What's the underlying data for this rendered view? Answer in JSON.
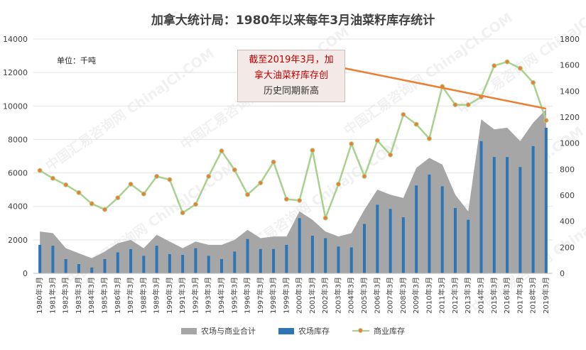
{
  "title": "加拿大统计局：1980年以来每年3月油菜籽库存统计",
  "unit_label": "单位：千吨",
  "callout": {
    "lines": [
      "截至2019年3月，加",
      "拿大油菜籽库存创",
      "历史同期新高"
    ]
  },
  "watermark": "中国汇易咨询网 ChinaJCI.COM",
  "colors": {
    "area": "#a6a6a6",
    "bar": "#2e75b6",
    "line": "#a9d18e",
    "marker": "#ed7d31",
    "trend": "#ed7d31"
  },
  "legend": [
    {
      "key": "area",
      "label": "农场与商业合计"
    },
    {
      "key": "bar",
      "label": "农场库存"
    },
    {
      "key": "line",
      "label": "商业库存"
    }
  ],
  "chart_data": {
    "type": "combo",
    "categories": [
      "1980年3月",
      "1981年3月",
      "1982年3月",
      "1983年3月",
      "1984年3月",
      "1985年3月",
      "1986年3月",
      "1987年3月",
      "1988年3月",
      "1989年3月",
      "1990年3月",
      "1991年3月",
      "1992年3月",
      "1993年3月",
      "1994年3月",
      "1995年3月",
      "1996年3月",
      "1997年3月",
      "1998年3月",
      "1999年3月",
      "2000年3月",
      "2001年3月",
      "2002年3月",
      "2003年3月",
      "2004年3月",
      "2005年3月",
      "2006年3月",
      "2007年3月",
      "2008年3月",
      "2009年3月",
      "2010年3月",
      "2011年3月",
      "2012年3月",
      "2013年3月",
      "2014年3月",
      "2015年3月",
      "2016年3月",
      "2017年3月",
      "2018年3月",
      "2019年3月"
    ],
    "left_axis": {
      "min": 0,
      "max": 14000,
      "ticks": [
        "0",
        "2000",
        "4000",
        "6000",
        "8000",
        "10000",
        "12000",
        "14000"
      ]
    },
    "right_axis": {
      "min": 0,
      "max": 1800,
      "ticks": [
        "0",
        "200",
        "400",
        "600",
        "800",
        "1000",
        "1200",
        "1400",
        "1600",
        "1800"
      ]
    },
    "series": [
      {
        "name": "农场与商业合计",
        "type": "area",
        "axis": "left",
        "values": [
          2500,
          2400,
          1500,
          1200,
          900,
          1300,
          1800,
          2000,
          1500,
          2300,
          1900,
          1500,
          1900,
          1700,
          1700,
          2000,
          2600,
          2100,
          2200,
          2200,
          3700,
          3200,
          2500,
          2200,
          2400,
          3800,
          5000,
          4700,
          4500,
          6300,
          6900,
          6500,
          4700,
          3700,
          9200,
          8600,
          8700,
          7900,
          9000,
          9800
        ]
      },
      {
        "name": "农场库存",
        "type": "bar",
        "axis": "left",
        "values": [
          1700,
          1650,
          850,
          550,
          350,
          850,
          1250,
          1450,
          1050,
          1650,
          1150,
          1100,
          1500,
          1050,
          850,
          1300,
          2050,
          1450,
          1450,
          1700,
          3300,
          2250,
          2100,
          1600,
          1550,
          2950,
          4100,
          3850,
          3350,
          5250,
          5900,
          5200,
          3900,
          3200,
          7900,
          6950,
          6950,
          6350,
          7600,
          8700
        ]
      },
      {
        "name": "商业库存",
        "type": "line",
        "axis": "right",
        "values": [
          790,
          730,
          680,
          620,
          535,
          490,
          580,
          685,
          610,
          745,
          720,
          465,
          530,
          745,
          940,
          795,
          605,
          695,
          855,
          570,
          560,
          945,
          425,
          685,
          995,
          745,
          1020,
          910,
          1220,
          1145,
          1035,
          1435,
          1295,
          1295,
          1355,
          1595,
          1625,
          1575,
          1465,
          1175
        ]
      }
    ],
    "trendline": {
      "axis": "right",
      "from": [
        "2001年3月",
        1625
      ],
      "to": [
        "2019年3月",
        1265
      ]
    },
    "legend_position": "bottom",
    "grid": true
  }
}
